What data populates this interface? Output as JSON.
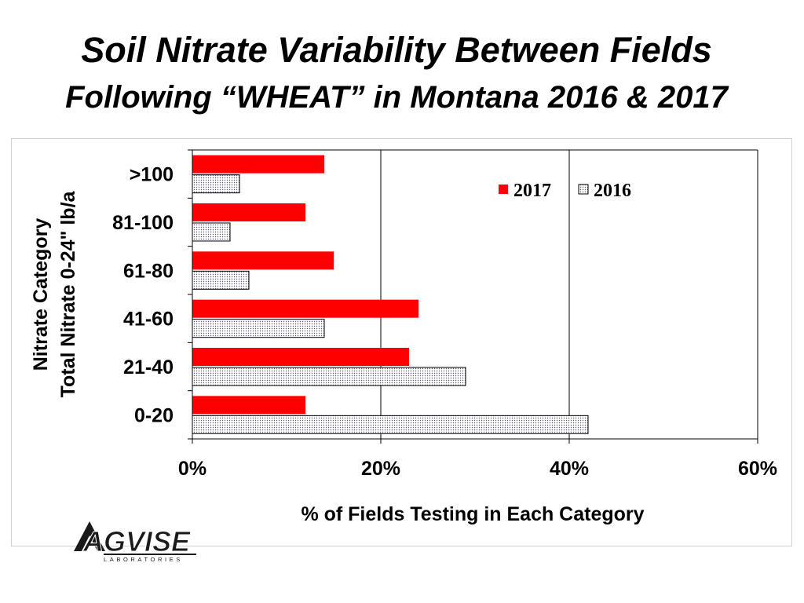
{
  "slide": {
    "title": "Soil Nitrate Variability Between Fields",
    "subtitle": "Following “WHEAT” in Montana 2016 & 2017"
  },
  "logo": {
    "name": "AGVISE",
    "tagline": "LABORATORIES"
  },
  "chart_data": {
    "type": "bar",
    "orientation": "horizontal",
    "categories": [
      ">100",
      "81-100",
      "61-80",
      "41-60",
      "21-40",
      "0-20"
    ],
    "series": [
      {
        "name": "2017",
        "values": [
          14,
          12,
          15,
          24,
          23,
          12
        ],
        "color": "#ff0000",
        "pattern": "solid"
      },
      {
        "name": "2016",
        "values": [
          5,
          4,
          6,
          14,
          29,
          42
        ],
        "color": "#ffffff",
        "pattern": "dotted"
      }
    ],
    "xlabel": "% of Fields Testing in Each Category",
    "ylabel": [
      "Nitrate Category",
      "Total Nitrate 0-24\" lb/a"
    ],
    "xlim": [
      0,
      60
    ],
    "x_ticks": [
      0,
      20,
      40,
      60
    ],
    "x_tick_labels": [
      "0%",
      "20%",
      "40%",
      "60%"
    ],
    "gridlines": "vertical",
    "legend_position": "top-right"
  }
}
